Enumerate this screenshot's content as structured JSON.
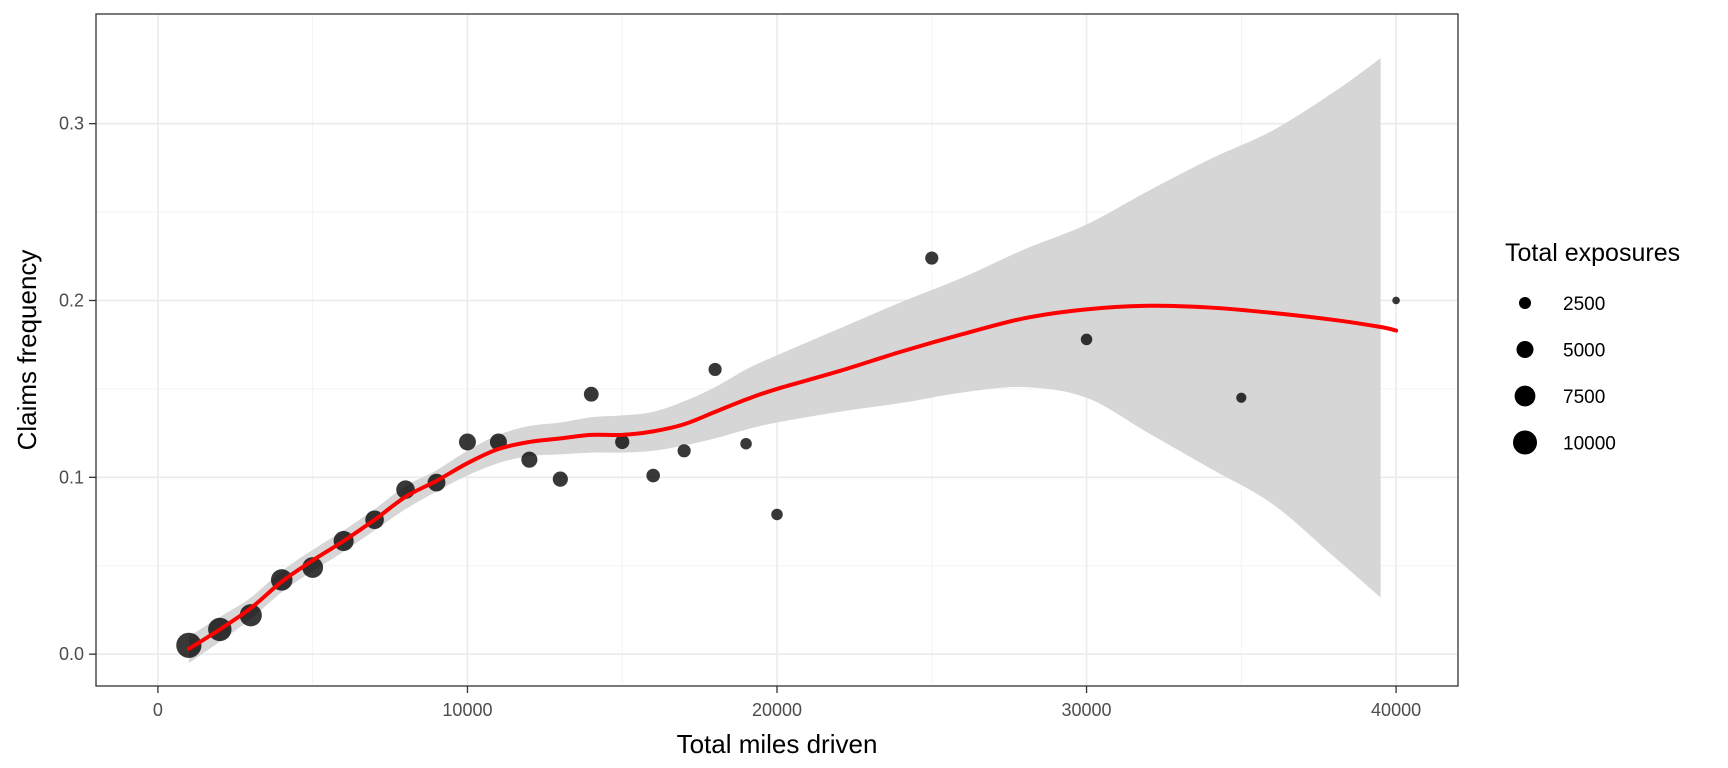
{
  "chart_data": {
    "type": "scatter",
    "xlabel": "Total miles driven",
    "ylabel": "Claims frequency",
    "xlim": [
      -2000,
      42000
    ],
    "ylim": [
      -0.018,
      0.362
    ],
    "x_ticks": [
      0,
      10000,
      20000,
      30000,
      40000
    ],
    "x_tick_labels": [
      "0",
      "10000",
      "20000",
      "30000",
      "40000"
    ],
    "y_ticks": [
      0.0,
      0.1,
      0.2,
      0.3
    ],
    "y_tick_labels": [
      "0.0",
      "0.1",
      "0.2",
      "0.3"
    ],
    "grid": true,
    "legend": {
      "title": "Total exposures",
      "position": "right",
      "entries": [
        {
          "label": "2500",
          "value": 2500
        },
        {
          "label": "5000",
          "value": 5000
        },
        {
          "label": "7500",
          "value": 7500
        },
        {
          "label": "10000",
          "value": 10000
        }
      ]
    },
    "points": [
      {
        "x": 1000,
        "y": 0.005,
        "exposure": 11000
      },
      {
        "x": 2000,
        "y": 0.014,
        "exposure": 9500
      },
      {
        "x": 3000,
        "y": 0.022,
        "exposure": 8500
      },
      {
        "x": 4000,
        "y": 0.042,
        "exposure": 8000
      },
      {
        "x": 5000,
        "y": 0.049,
        "exposure": 7500
      },
      {
        "x": 6000,
        "y": 0.064,
        "exposure": 7000
      },
      {
        "x": 7000,
        "y": 0.076,
        "exposure": 6000
      },
      {
        "x": 8000,
        "y": 0.093,
        "exposure": 6000
      },
      {
        "x": 9000,
        "y": 0.097,
        "exposure": 5500
      },
      {
        "x": 10000,
        "y": 0.12,
        "exposure": 5000
      },
      {
        "x": 11000,
        "y": 0.12,
        "exposure": 5000
      },
      {
        "x": 12000,
        "y": 0.11,
        "exposure": 4500
      },
      {
        "x": 13000,
        "y": 0.099,
        "exposure": 4000
      },
      {
        "x": 14000,
        "y": 0.147,
        "exposure": 3800
      },
      {
        "x": 15000,
        "y": 0.12,
        "exposure": 3500
      },
      {
        "x": 16000,
        "y": 0.101,
        "exposure": 3200
      },
      {
        "x": 17000,
        "y": 0.115,
        "exposure": 3000
      },
      {
        "x": 18000,
        "y": 0.161,
        "exposure": 3000
      },
      {
        "x": 19000,
        "y": 0.119,
        "exposure": 2300
      },
      {
        "x": 20000,
        "y": 0.079,
        "exposure": 2300
      },
      {
        "x": 25000,
        "y": 0.224,
        "exposure": 3000
      },
      {
        "x": 30000,
        "y": 0.178,
        "exposure": 2300
      },
      {
        "x": 35000,
        "y": 0.145,
        "exposure": 1800
      },
      {
        "x": 40000,
        "y": 0.2,
        "exposure": 1000
      }
    ],
    "smooth": {
      "color": "#ff0000",
      "band_color": "#d4d4d4",
      "points": [
        {
          "x": 1000,
          "fit": 0.003,
          "lower": -0.005,
          "upper": 0.01
        },
        {
          "x": 2000,
          "fit": 0.014,
          "lower": 0.007,
          "upper": 0.021
        },
        {
          "x": 3000,
          "fit": 0.026,
          "lower": 0.02,
          "upper": 0.032
        },
        {
          "x": 4000,
          "fit": 0.041,
          "lower": 0.035,
          "upper": 0.047
        },
        {
          "x": 5000,
          "fit": 0.053,
          "lower": 0.047,
          "upper": 0.059
        },
        {
          "x": 6000,
          "fit": 0.064,
          "lower": 0.058,
          "upper": 0.07
        },
        {
          "x": 7000,
          "fit": 0.076,
          "lower": 0.07,
          "upper": 0.082
        },
        {
          "x": 8000,
          "fit": 0.089,
          "lower": 0.082,
          "upper": 0.095
        },
        {
          "x": 9000,
          "fit": 0.098,
          "lower": 0.092,
          "upper": 0.104
        },
        {
          "x": 10000,
          "fit": 0.108,
          "lower": 0.101,
          "upper": 0.115
        },
        {
          "x": 11000,
          "fit": 0.116,
          "lower": 0.108,
          "upper": 0.124
        },
        {
          "x": 12000,
          "fit": 0.12,
          "lower": 0.112,
          "upper": 0.129
        },
        {
          "x": 13000,
          "fit": 0.122,
          "lower": 0.113,
          "upper": 0.131
        },
        {
          "x": 14000,
          "fit": 0.124,
          "lower": 0.114,
          "upper": 0.134
        },
        {
          "x": 15000,
          "fit": 0.124,
          "lower": 0.114,
          "upper": 0.135
        },
        {
          "x": 16000,
          "fit": 0.126,
          "lower": 0.115,
          "upper": 0.137
        },
        {
          "x": 17000,
          "fit": 0.13,
          "lower": 0.118,
          "upper": 0.143
        },
        {
          "x": 18000,
          "fit": 0.137,
          "lower": 0.122,
          "upper": 0.151
        },
        {
          "x": 19000,
          "fit": 0.144,
          "lower": 0.127,
          "upper": 0.161
        },
        {
          "x": 20000,
          "fit": 0.15,
          "lower": 0.131,
          "upper": 0.169
        },
        {
          "x": 22000,
          "fit": 0.16,
          "lower": 0.137,
          "upper": 0.184
        },
        {
          "x": 24000,
          "fit": 0.171,
          "lower": 0.142,
          "upper": 0.199
        },
        {
          "x": 26000,
          "fit": 0.181,
          "lower": 0.148,
          "upper": 0.213
        },
        {
          "x": 28000,
          "fit": 0.19,
          "lower": 0.151,
          "upper": 0.229
        },
        {
          "x": 30000,
          "fit": 0.195,
          "lower": 0.145,
          "upper": 0.243
        },
        {
          "x": 32000,
          "fit": 0.197,
          "lower": 0.125,
          "upper": 0.262
        },
        {
          "x": 34000,
          "fit": 0.196,
          "lower": 0.105,
          "upper": 0.28
        },
        {
          "x": 36000,
          "fit": 0.193,
          "lower": 0.085,
          "upper": 0.296
        },
        {
          "x": 38000,
          "fit": 0.189,
          "lower": 0.055,
          "upper": 0.318
        },
        {
          "x": 39500,
          "fit": 0.185,
          "lower": 0.032,
          "upper": 0.337
        },
        {
          "x": 40000,
          "fit": 0.183
        }
      ]
    }
  }
}
